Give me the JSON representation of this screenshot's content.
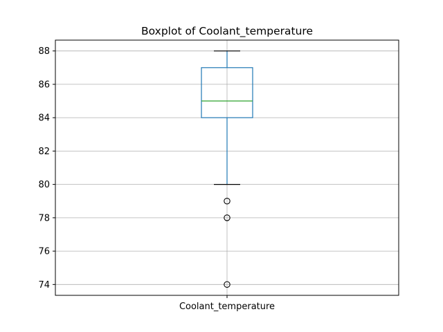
{
  "chart_data": {
    "type": "box",
    "title": "Boxplot of Coolant_temperature",
    "categories": [
      "Coolant_temperature"
    ],
    "series": [
      {
        "box": {
          "whisker_low": 80,
          "q1": 84,
          "median": 85,
          "q3": 87,
          "whisker_high": 88
        },
        "outliers": [
          79,
          78,
          74
        ]
      }
    ],
    "ylim": [
      73.35,
      88.65
    ],
    "yticks": [
      74,
      76,
      78,
      80,
      82,
      84,
      86,
      88
    ],
    "grid": true,
    "colors": {
      "box": "#1f77b4",
      "median": "#2ca02c",
      "whisker": "#1f77b4",
      "cap": "#000000",
      "outlier": "#000000",
      "grid": "#b0b0b0"
    }
  }
}
